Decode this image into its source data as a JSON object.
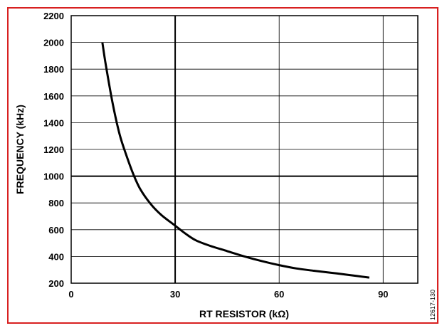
{
  "chart_data": {
    "type": "line",
    "xlabel": "RT RESISTOR (kΩ)",
    "ylabel": "FREQUENCY (kHz)",
    "xlim": [
      0,
      100
    ],
    "ylim": [
      200,
      2200
    ],
    "x_ticks": [
      0,
      30,
      60,
      90
    ],
    "y_ticks": [
      200,
      400,
      600,
      800,
      1000,
      1200,
      1400,
      1600,
      1800,
      2000,
      2200
    ],
    "x_major_grid": [
      30,
      60,
      90
    ],
    "y_major_grid": [
      1000
    ],
    "grid": true,
    "figure_id": "12617-130",
    "series": [
      {
        "x": [
          9,
          10,
          12,
          14,
          16,
          18,
          20,
          23,
          26,
          30,
          33,
          36,
          40,
          45,
          50,
          55,
          60,
          65,
          70,
          75,
          80,
          86
        ],
        "y": [
          2000,
          1830,
          1540,
          1310,
          1150,
          1010,
          900,
          790,
          710,
          630,
          570,
          520,
          480,
          440,
          400,
          365,
          335,
          310,
          293,
          278,
          262,
          242
        ]
      }
    ],
    "colors": {
      "frame": "#d82020",
      "line": "#000000",
      "grid": "#000000"
    }
  }
}
